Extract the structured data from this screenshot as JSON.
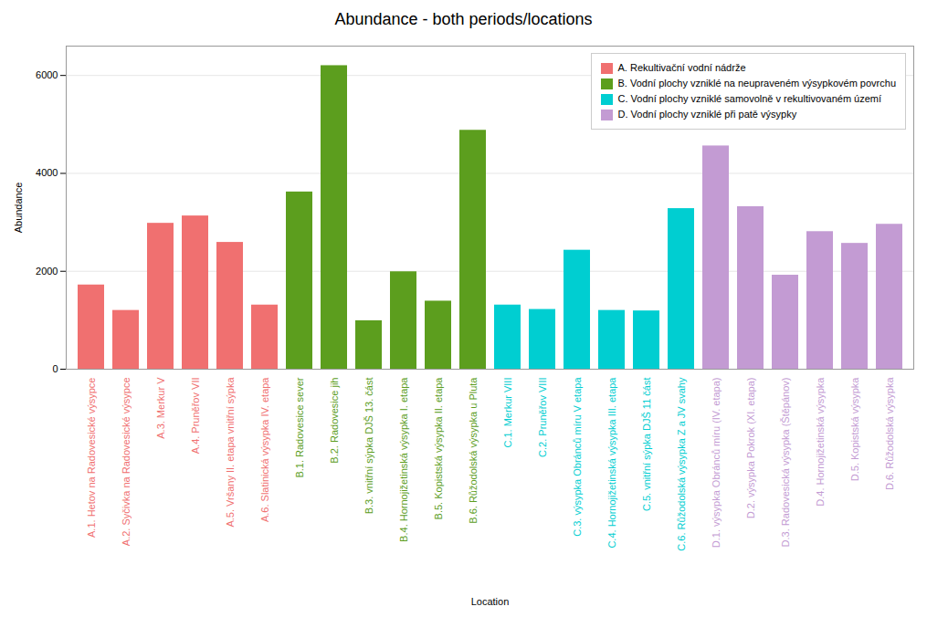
{
  "chart_data": {
    "type": "bar",
    "title": "Abundance - both periods/locations",
    "xlabel": "Location",
    "ylabel": "Abundance",
    "categories": [
      "A.1. Hetov na Radovesické výsypce",
      "A.2. Syčivka na Radovesické výsypce",
      "A.3. Merkur V",
      "A.4. Pruněřov VII",
      "A.5. Vršany II. etapa vnitřní sýpka",
      "A.6. Slatinická výsypka IV. etapa",
      "B.1. Radovesice sever",
      "B.2. Radovesice jih",
      "B.3. vnitřní sýpka DJŠ 13. část",
      "B.4. Hornojižetinská výsypka I. etapa",
      "B.5. Kopistská výsypka II. etapa",
      "B.6. Růžodolská výsypka u Pluta",
      "C.1. Merkur VIII",
      "C.2. Pruněřov VIII",
      "C.3. výsypka Obránců míru V etapa",
      "C.4. Hornojižetinská výsypka III. etapa",
      "C.5. vnitřní sýpka DJŠ 11 část",
      "C.6. Růžodolská výsypka Z a JV svahy",
      "D.1. výsypka Obránců míru (IV. etapa)",
      "D.2. výsypka Pokrok (XI. etapa)",
      "D.3. Radovesická výsypka (Štěpánov)",
      "D.4. Hornojižetinská výsypka",
      "D.5. Kopistská výsypka",
      "D.6. Růžodolská výsypka"
    ],
    "series": [
      {
        "name": "A. Rekultivační vodní nádrže",
        "color": "#F07070",
        "values": [
          1720,
          1200,
          2980,
          3130,
          2590,
          1310,
          null,
          null,
          null,
          null,
          null,
          null,
          null,
          null,
          null,
          null,
          null,
          null,
          null,
          null,
          null,
          null,
          null,
          null
        ]
      },
      {
        "name": "B. Vodní plochy vzniklé na neupraveném výsypkovém povrchu",
        "color": "#5C9E1E",
        "values": [
          null,
          null,
          null,
          null,
          null,
          null,
          3620,
          6200,
          990,
          1990,
          1390,
          4880,
          null,
          null,
          null,
          null,
          null,
          null,
          null,
          null,
          null,
          null,
          null,
          null
        ]
      },
      {
        "name": "C. Vodní plochy vzniklé samovolně v rekultivovaném území",
        "color": "#00CED1",
        "values": [
          null,
          null,
          null,
          null,
          null,
          null,
          null,
          null,
          null,
          null,
          null,
          null,
          1310,
          1220,
          2430,
          1200,
          1190,
          3280,
          null,
          null,
          null,
          null,
          null,
          null
        ]
      },
      {
        "name": "D. Vodní plochy vzniklé při patě výsypky",
        "color": "#C39BD3",
        "values": [
          null,
          null,
          null,
          null,
          null,
          null,
          null,
          null,
          null,
          null,
          null,
          null,
          null,
          null,
          null,
          null,
          null,
          null,
          4560,
          3320,
          1920,
          2810,
          2570,
          2960
        ]
      }
    ],
    "ylim": [
      0,
      6600
    ],
    "yticks": [
      0,
      2000,
      4000,
      6000
    ],
    "grid": true,
    "legend": "upper right"
  }
}
